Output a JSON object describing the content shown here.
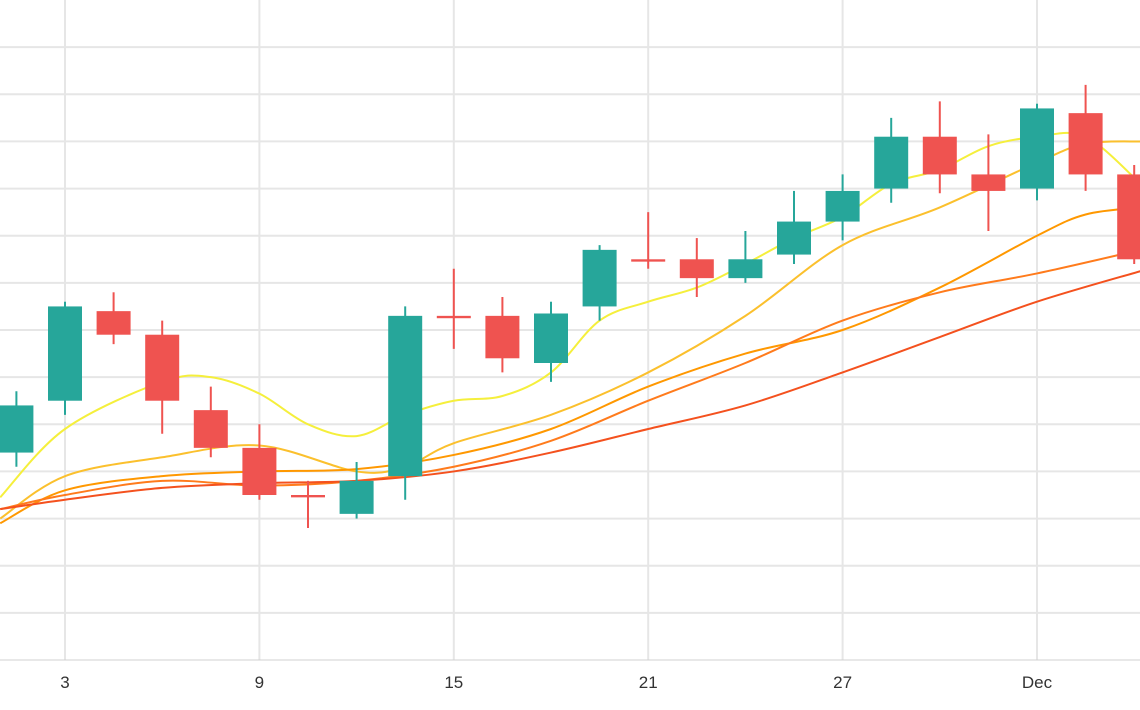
{
  "chart_data": {
    "type": "candlestick",
    "grid": true,
    "legend": "none",
    "x_tick_labels": [
      {
        "x": 3,
        "label": "3"
      },
      {
        "x": 9,
        "label": "9"
      },
      {
        "x": 15,
        "label": "15"
      },
      {
        "x": 21,
        "label": "21"
      },
      {
        "x": 27,
        "label": "27"
      },
      {
        "x": 33,
        "label": "Dec"
      }
    ],
    "xlim": [
      1,
      36.2
    ],
    "ylim": [
      0,
      14
    ],
    "y_gridlines": [
      1,
      2,
      3,
      4,
      5,
      6,
      7,
      8,
      9,
      10,
      11,
      12,
      13
    ],
    "colors": {
      "up": "#26a69a",
      "down": "#ef5350",
      "grid": "#e6e6e6",
      "axis": "#d0d0d0"
    },
    "candles": [
      {
        "x": 1.5,
        "open": 4.4,
        "high": 5.7,
        "low": 4.1,
        "close": 5.4
      },
      {
        "x": 3.0,
        "open": 5.5,
        "high": 7.6,
        "low": 5.2,
        "close": 7.5
      },
      {
        "x": 4.5,
        "open": 7.4,
        "high": 7.8,
        "low": 6.7,
        "close": 6.9
      },
      {
        "x": 6.0,
        "open": 6.9,
        "high": 7.2,
        "low": 4.8,
        "close": 5.5
      },
      {
        "x": 7.5,
        "open": 5.3,
        "high": 5.8,
        "low": 4.3,
        "close": 4.5
      },
      {
        "x": 9.0,
        "open": 4.5,
        "high": 5.0,
        "low": 3.4,
        "close": 3.5
      },
      {
        "x": 10.5,
        "open": 3.5,
        "high": 3.8,
        "low": 2.8,
        "close": 3.45
      },
      {
        "x": 12.0,
        "open": 3.1,
        "high": 4.2,
        "low": 3.0,
        "close": 3.8
      },
      {
        "x": 13.5,
        "open": 3.9,
        "high": 7.5,
        "low": 3.4,
        "close": 7.3
      },
      {
        "x": 15.0,
        "open": 7.3,
        "high": 8.3,
        "low": 6.6,
        "close": 7.25
      },
      {
        "x": 16.5,
        "open": 7.3,
        "high": 7.7,
        "low": 6.1,
        "close": 6.4
      },
      {
        "x": 18.0,
        "open": 6.3,
        "high": 7.6,
        "low": 5.9,
        "close": 7.35
      },
      {
        "x": 19.5,
        "open": 7.5,
        "high": 8.8,
        "low": 7.2,
        "close": 8.7
      },
      {
        "x": 21.0,
        "open": 8.5,
        "high": 9.5,
        "low": 8.3,
        "close": 8.45
      },
      {
        "x": 22.5,
        "open": 8.5,
        "high": 8.95,
        "low": 7.7,
        "close": 8.1
      },
      {
        "x": 24.0,
        "open": 8.1,
        "high": 9.1,
        "low": 8.0,
        "close": 8.5
      },
      {
        "x": 25.5,
        "open": 8.6,
        "high": 9.95,
        "low": 8.4,
        "close": 9.3
      },
      {
        "x": 27.0,
        "open": 9.3,
        "high": 10.3,
        "low": 8.9,
        "close": 9.95
      },
      {
        "x": 28.5,
        "open": 10.0,
        "high": 11.5,
        "low": 9.7,
        "close": 11.1
      },
      {
        "x": 30.0,
        "open": 11.1,
        "high": 11.85,
        "low": 9.9,
        "close": 10.3
      },
      {
        "x": 31.5,
        "open": 10.3,
        "high": 11.15,
        "low": 9.1,
        "close": 9.95
      },
      {
        "x": 33.0,
        "open": 10.0,
        "high": 11.8,
        "low": 9.75,
        "close": 11.7
      },
      {
        "x": 34.5,
        "open": 11.6,
        "high": 12.2,
        "low": 9.95,
        "close": 10.3
      },
      {
        "x": 36.0,
        "open": 10.3,
        "high": 10.5,
        "low": 8.4,
        "close": 8.5
      }
    ],
    "moving_averages": [
      {
        "color": "#f5ef3c",
        "x": [
          1,
          3,
          6,
          7.5,
          9,
          10.5,
          12,
          13.5,
          15,
          16.5,
          18,
          19.5,
          21,
          22.5,
          24,
          25.5,
          27,
          28.5,
          30,
          31.5,
          33,
          34.5,
          36.2
        ],
        "y": [
          3.45,
          4.9,
          5.9,
          6.0,
          5.65,
          5.0,
          4.75,
          5.2,
          5.5,
          5.6,
          6.1,
          7.2,
          7.6,
          7.9,
          8.4,
          8.95,
          9.4,
          10.1,
          10.4,
          10.9,
          11.1,
          11.1,
          10.1
        ]
      },
      {
        "color": "#fbc02d",
        "x": [
          1,
          3,
          6,
          9,
          12,
          13.5,
          15,
          18,
          21,
          24,
          27,
          30,
          33,
          34.5,
          36.2
        ],
        "y": [
          3.0,
          3.9,
          4.3,
          4.55,
          4.0,
          4.1,
          4.6,
          5.2,
          6.1,
          7.3,
          8.8,
          9.6,
          10.55,
          10.95,
          11.0
        ]
      },
      {
        "color": "#ff9800",
        "x": [
          1,
          3,
          6,
          9,
          12,
          15,
          18,
          21,
          24,
          27,
          30,
          33,
          34.5,
          36.2
        ],
        "y": [
          2.9,
          3.6,
          3.9,
          4.0,
          4.05,
          4.35,
          4.9,
          5.8,
          6.5,
          7.0,
          7.9,
          9.0,
          9.45,
          9.6
        ]
      },
      {
        "color": "#ff7b1c",
        "x": [
          1,
          3,
          6,
          9,
          12,
          15,
          18,
          21,
          24,
          27,
          30,
          33,
          36.2
        ],
        "y": [
          3.2,
          3.5,
          3.8,
          3.7,
          3.8,
          4.1,
          4.65,
          5.5,
          6.3,
          7.2,
          7.8,
          8.2,
          8.7
        ]
      },
      {
        "color": "#f4511e",
        "x": [
          1,
          3,
          6,
          9,
          12,
          15,
          18,
          21,
          24,
          27,
          30,
          33,
          36.2
        ],
        "y": [
          3.2,
          3.4,
          3.65,
          3.75,
          3.8,
          4.0,
          4.4,
          4.9,
          5.4,
          6.1,
          6.85,
          7.6,
          8.25
        ]
      }
    ]
  }
}
